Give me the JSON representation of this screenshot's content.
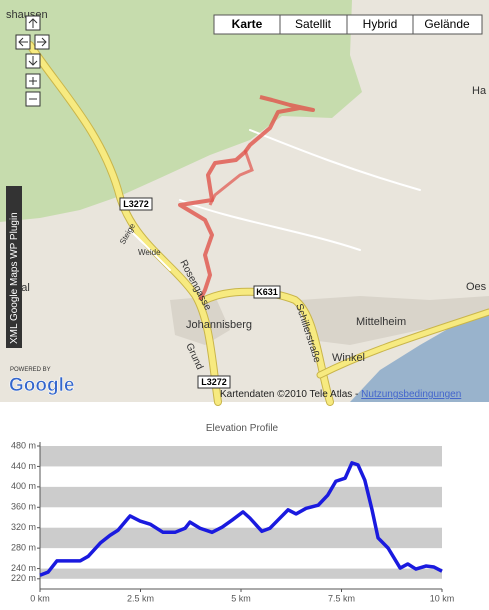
{
  "map": {
    "map_types": [
      "Karte",
      "Satellit",
      "Hybrid",
      "Gelände"
    ],
    "places": [
      "shausen",
      "Ha",
      "Oes",
      "nthal",
      "Johannisberg",
      "Mittelheim",
      "Winkel",
      "Steige",
      "Weide"
    ],
    "streets": [
      "Rosengasse",
      "Schillerstraße",
      "Grund"
    ],
    "road_shields": [
      "L3272",
      "K631",
      "L3272"
    ],
    "attribution": "Kartendaten ©2010 Tele Atlas - ",
    "terms_link": "Nutzungsbedingungen",
    "logo_caption": "POWERED BY",
    "logo": "Google",
    "plugin_label": "XML Google Maps WP Plugin"
  },
  "chart_data": {
    "type": "line",
    "title": "Elevation Profile",
    "x": [
      0,
      0.2,
      0.42,
      1.0,
      1.2,
      1.5,
      1.74,
      1.94,
      2.24,
      2.49,
      2.74,
      3.06,
      3.36,
      3.61,
      3.73,
      3.98,
      4.28,
      4.53,
      4.78,
      5.05,
      5.22,
      5.52,
      5.72,
      5.92,
      6.17,
      6.37,
      6.62,
      6.92,
      7.16,
      7.36,
      7.59,
      7.76,
      7.91,
      8.08,
      8.26,
      8.41,
      8.66,
      8.96,
      9.15,
      9.35,
      9.6,
      9.8,
      10
    ],
    "values": [
      227,
      233,
      255,
      255,
      264,
      290,
      305,
      315,
      343,
      333,
      327,
      311,
      311,
      319,
      331,
      319,
      311,
      321,
      335,
      351,
      339,
      313,
      319,
      335,
      355,
      347,
      358,
      364,
      384,
      411,
      417,
      447,
      443,
      413,
      355,
      300,
      280,
      241,
      249,
      239,
      245,
      243,
      235
    ],
    "color": "#1a1adf",
    "xlim": [
      0,
      10
    ],
    "xticks": [
      {
        "value": 0,
        "label": "0 km"
      },
      {
        "value": 2.5,
        "label": "2.5 km"
      },
      {
        "value": 5,
        "label": "5 km"
      },
      {
        "value": 7.5,
        "label": "7.5 km"
      },
      {
        "value": 10,
        "label": "10 km"
      }
    ],
    "ylim": [
      200,
      480
    ],
    "yticks": [
      {
        "value": 220,
        "label": "220 m"
      },
      {
        "value": 240,
        "label": "240 m"
      },
      {
        "value": 280,
        "label": "280 m"
      },
      {
        "value": 320,
        "label": "320 m"
      },
      {
        "value": 360,
        "label": "360 m"
      },
      {
        "value": 400,
        "label": "400 m"
      },
      {
        "value": 440,
        "label": "440 m"
      },
      {
        "value": 480,
        "label": "480 m"
      }
    ],
    "grid": true
  }
}
